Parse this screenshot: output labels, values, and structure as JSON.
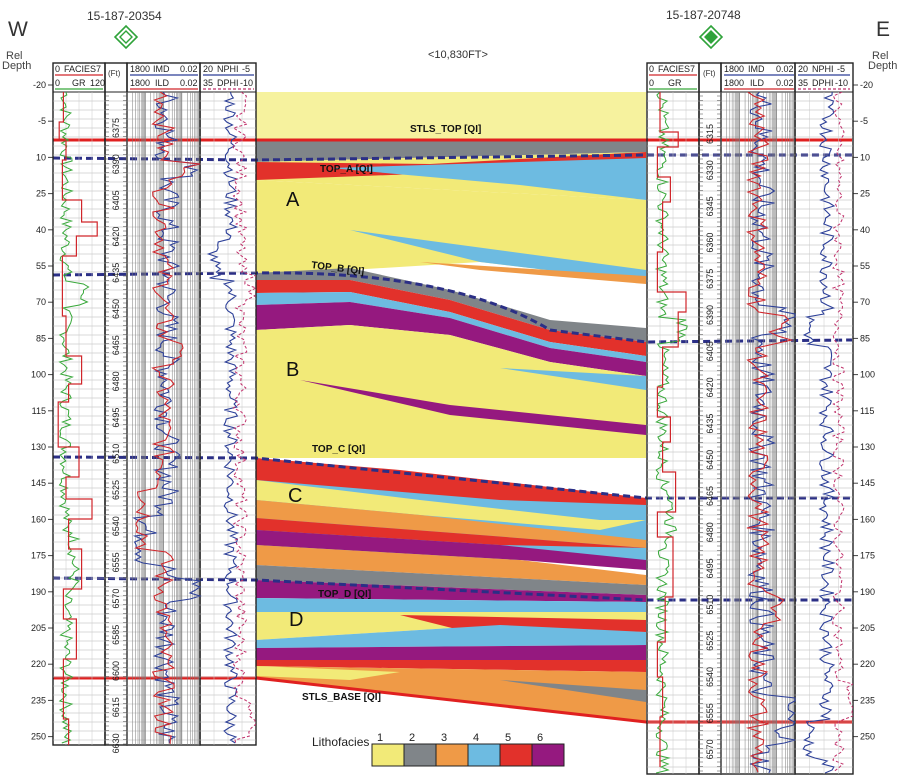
{
  "orientation": {
    "west": "W",
    "east": "E"
  },
  "wells": {
    "west_name": "15-187-20354",
    "east_name": "15-187-20748",
    "spacing_label": "<10,830FT>"
  },
  "depth_axis": {
    "label_line1": "Rel",
    "label_line2": "Depth",
    "ticks": [
      "-20",
      "-5",
      "10",
      "25",
      "40",
      "55",
      "70",
      "85",
      "100",
      "115",
      "130",
      "145",
      "160",
      "175",
      "190",
      "205",
      "220",
      "235",
      "250"
    ]
  },
  "track_headers": {
    "facies": {
      "min": "0",
      "name": "FACIES",
      "max": "7"
    },
    "gr": {
      "min": "0",
      "name": "GR",
      "max": "120"
    },
    "ft_label": "(Ft)",
    "imd": {
      "min": "1800",
      "name": "IMD",
      "max": "0.02"
    },
    "ild": {
      "min": "1800",
      "name": "ILD",
      "max": "0.02"
    },
    "nphi": {
      "min": "20",
      "name": "NPHI",
      "max": "-5"
    },
    "dphi": {
      "min": "35",
      "name": "DPHI",
      "max": "-10"
    }
  },
  "west_md_ticks": [
    "6375",
    "6390",
    "6405",
    "6420",
    "6435",
    "6450",
    "6465",
    "6480",
    "6495",
    "6510",
    "6525",
    "6540",
    "6555",
    "6570",
    "6585",
    "6600",
    "6615",
    "6630"
  ],
  "east_md_ticks": [
    "6315",
    "6330",
    "6345",
    "6360",
    "6375",
    "6390",
    "6405",
    "6420",
    "6435",
    "6450",
    "6465",
    "6480",
    "6495",
    "6510",
    "6525",
    "6540",
    "6555",
    "6570"
  ],
  "horizons": {
    "stls_top": "STLS_TOP [QI]",
    "top_a": "TOP_A [QI]",
    "top_b": "TOP_B [QI]",
    "top_c": "TOP_C [QI]",
    "top_d": "TOP_D [QI]",
    "stls_base": "STLS_BASE [QI]"
  },
  "zones": [
    "A",
    "B",
    "C",
    "D"
  ],
  "legend": {
    "title": "Lithofacies",
    "items": [
      {
        "label": "1",
        "color": "#f2ea78"
      },
      {
        "label": "2",
        "color": "#808589"
      },
      {
        "label": "3",
        "color": "#ef9a47"
      },
      {
        "label": "4",
        "color": "#6dbbe1"
      },
      {
        "label": "5",
        "color": "#e2312b"
      },
      {
        "label": "6",
        "color": "#95197f"
      }
    ]
  },
  "colors": {
    "pale_yellow": "#f6f29e",
    "horizon_red": "#e02020",
    "horizon_blue": "#2b2f86",
    "gr_curve": "#38a83a",
    "log_blue": "#2c3f98",
    "log_red": "#d0262b"
  }
}
